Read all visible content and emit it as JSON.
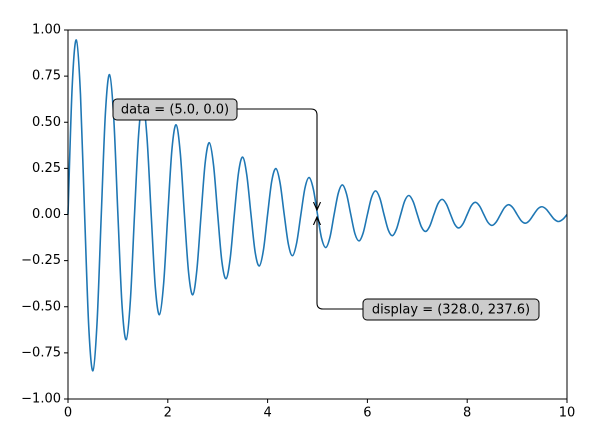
{
  "chart_data": {
    "type": "line",
    "x": [
      0,
      0.083,
      0.167,
      0.25,
      0.333,
      0.417,
      0.5,
      0.583,
      0.667,
      0.75,
      0.833,
      0.917,
      1,
      1.083,
      1.167,
      1.25,
      1.333,
      1.417,
      1.5,
      1.583,
      1.667,
      1.75,
      1.833,
      1.917,
      2,
      2.083,
      2.167,
      2.25,
      2.333,
      2.417,
      2.5,
      2.583,
      2.667,
      2.75,
      2.833,
      2.917,
      3,
      3.083,
      3.167,
      3.25,
      3.333,
      3.417,
      3.5,
      3.583,
      3.667,
      3.75,
      3.833,
      3.917,
      4,
      4.083,
      4.167,
      4.25,
      4.333,
      4.417,
      4.5,
      4.583,
      4.667,
      4.75,
      4.833,
      4.917,
      5,
      5.083,
      5.167,
      5.25,
      5.333,
      5.417,
      5.5,
      5.583,
      5.667,
      5.75,
      5.833,
      5.917,
      6,
      6.083,
      6.167,
      6.25,
      6.333,
      6.417,
      6.5,
      6.583,
      6.667,
      6.75,
      6.833,
      6.917,
      7,
      7.083,
      7.167,
      7.25,
      7.333,
      7.417,
      7.5,
      7.583,
      7.667,
      7.75,
      7.833,
      7.917,
      8,
      8.083,
      8.167,
      8.25,
      8.333,
      8.417,
      8.5,
      8.583,
      8.667,
      8.75,
      8.833,
      8.917,
      9,
      9.083,
      9.167,
      9.25,
      9.333,
      9.417,
      9.5,
      9.583,
      9.667,
      9.75,
      9.833,
      9.917,
      10
    ],
    "series": [
      {
        "color": "#1f77b4",
        "values": [
          0,
          0.688,
          0.946,
          0.651,
          0,
          -0.615,
          -0.847,
          -0.582,
          0,
          0.551,
          0.758,
          0.521,
          0,
          -0.493,
          -0.678,
          -0.466,
          0,
          0.441,
          0.607,
          0.417,
          0,
          -0.395,
          -0.543,
          -0.373,
          0,
          0.353,
          0.486,
          0.334,
          0,
          -0.316,
          -0.435,
          -0.299,
          0,
          0.283,
          0.389,
          0.267,
          0,
          -0.253,
          -0.348,
          -0.239,
          0,
          0.226,
          0.311,
          0.214,
          0,
          -0.203,
          -0.279,
          -0.192,
          0,
          0.181,
          0.249,
          0.171,
          0,
          -0.162,
          -0.223,
          -0.153,
          0,
          0.145,
          0.2,
          0.137,
          0,
          -0.13,
          -0.179,
          -0.123,
          0,
          0.116,
          0.16,
          0.11,
          0,
          -0.104,
          -0.143,
          -0.098,
          0,
          0.093,
          0.128,
          0.088,
          0,
          -0.083,
          -0.115,
          -0.079,
          0,
          0.075,
          0.103,
          0.07,
          0,
          -0.067,
          -0.092,
          -0.063,
          0,
          0.06,
          0.082,
          0.056,
          0,
          -0.053,
          -0.073,
          -0.05,
          0,
          0.048,
          0.066,
          0.045,
          0,
          -0.043,
          -0.059,
          -0.04,
          0,
          0.038,
          0.053,
          0.036,
          0,
          -0.034,
          -0.047,
          -0.032,
          0,
          0.031,
          0.042,
          0.029,
          0,
          -0.027,
          -0.038,
          -0.026,
          0
        ]
      }
    ],
    "xlim": [
      0,
      10
    ],
    "ylim": [
      -1,
      1
    ],
    "xticks": [
      0,
      2,
      4,
      6,
      8,
      10
    ],
    "yticks": [
      {
        "value": -1,
        "label": "−1.00"
      },
      {
        "value": -0.75,
        "label": "−0.75"
      },
      {
        "value": -0.5,
        "label": "−0.50"
      },
      {
        "value": -0.25,
        "label": "−0.25"
      },
      {
        "value": 0,
        "label": "0.00"
      },
      {
        "value": 0.25,
        "label": "0.25"
      },
      {
        "value": 0.5,
        "label": "0.50"
      },
      {
        "value": 0.75,
        "label": "0.75"
      },
      {
        "value": 1,
        "label": "1.00"
      }
    ],
    "annotations": [
      {
        "text": "data = (5.0, 0.0)"
      },
      {
        "text": "display = (328.0, 237.6)"
      }
    ]
  }
}
